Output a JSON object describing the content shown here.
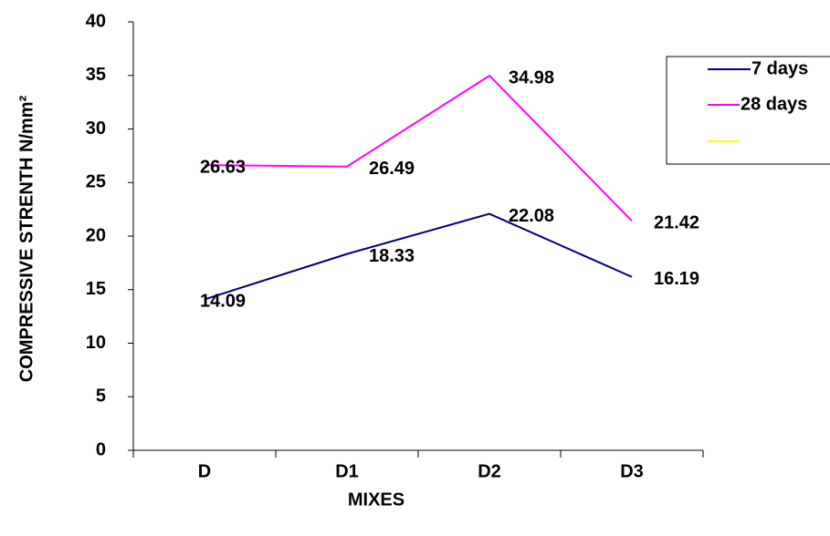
{
  "chart_data": {
    "type": "line",
    "x_label": "MIXES",
    "y_label": "COMPRESSIVE STRENTH N/mm²",
    "categories": [
      "D",
      "D1",
      "D2",
      "D3"
    ],
    "series": [
      {
        "name": "7 days",
        "color": "#000080",
        "values": [
          14.09,
          18.33,
          22.08,
          16.19
        ]
      },
      {
        "name": "28 days",
        "color": "#ff00ff",
        "values": [
          26.63,
          26.49,
          34.98,
          21.42
        ]
      }
    ],
    "ylim": [
      0,
      40
    ],
    "yticks": [
      0,
      5,
      10,
      15,
      20,
      25,
      30,
      35,
      40
    ],
    "legend": "right",
    "grid": false
  }
}
